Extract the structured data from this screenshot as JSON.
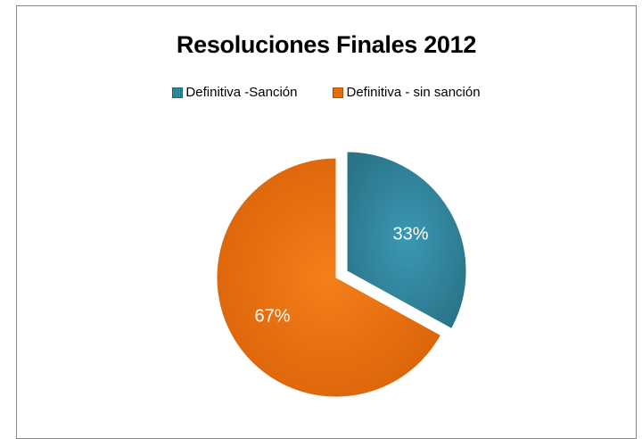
{
  "chart_data": {
    "type": "pie",
    "title": "Resoluciones Finales 2012",
    "categories": [
      "Definitiva -Sanción",
      "Definitiva - sin sanción"
    ],
    "values": [
      33,
      67
    ],
    "data_labels": [
      "33%",
      "67%"
    ],
    "colors": [
      "#31849B",
      "#E46C0A"
    ],
    "exploded": [
      "Definitiva -Sanción"
    ],
    "legend_position": "top"
  }
}
